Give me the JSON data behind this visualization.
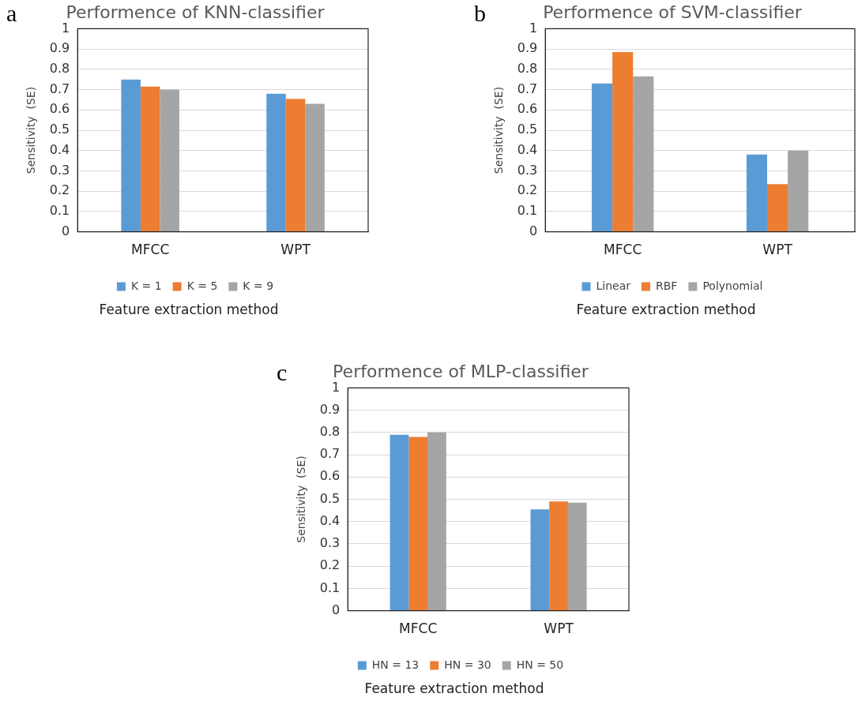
{
  "chart_data": [
    {
      "type": "bar",
      "title": "Performence of KNN-classifier",
      "xlabel": "Feature extraction method",
      "ylabel": "Sensitivity  (SE)",
      "annotations": [
        "a"
      ],
      "categories": [
        "MFCC",
        "WPT"
      ],
      "ylim": [
        0,
        1
      ],
      "yticks": [
        0,
        0.1,
        0.2,
        0.3,
        0.4,
        0.5,
        0.6,
        0.7,
        0.8,
        0.9,
        1
      ],
      "grid": "y",
      "legend": "bottom",
      "series": [
        {
          "name": "K = 1",
          "color": "#5b9bd5",
          "values": [
            0.75,
            0.68
          ]
        },
        {
          "name": "K = 5",
          "color": "#ed7d31",
          "values": [
            0.715,
            0.655
          ]
        },
        {
          "name": "K = 9",
          "color": "#a5a5a5",
          "values": [
            0.7,
            0.63
          ]
        }
      ]
    },
    {
      "type": "bar",
      "title": "Performence of SVM-classifier",
      "xlabel": "Feature extraction method",
      "ylabel": "Sensitivity  (SE)",
      "annotations": [
        "b"
      ],
      "categories": [
        "MFCC",
        "WPT"
      ],
      "ylim": [
        0,
        1
      ],
      "yticks": [
        0,
        0.1,
        0.2,
        0.3,
        0.4,
        0.5,
        0.6,
        0.7,
        0.8,
        0.9,
        1
      ],
      "grid": "y",
      "legend": "bottom",
      "series": [
        {
          "name": "Linear",
          "color": "#5b9bd5",
          "values": [
            0.73,
            0.38
          ]
        },
        {
          "name": "RBF",
          "color": "#ed7d31",
          "values": [
            0.885,
            0.235
          ]
        },
        {
          "name": "Polynomial",
          "color": "#a5a5a5",
          "values": [
            0.765,
            0.4
          ]
        }
      ]
    },
    {
      "type": "bar",
      "title": "Performence of MLP-classifier",
      "xlabel": "Feature extraction method",
      "ylabel": "Sensitivity  (SE)",
      "annotations": [
        "c"
      ],
      "categories": [
        "MFCC",
        "WPT"
      ],
      "ylim": [
        0,
        1
      ],
      "yticks": [
        0,
        0.1,
        0.2,
        0.3,
        0.4,
        0.5,
        0.6,
        0.7,
        0.8,
        0.9,
        1
      ],
      "grid": "y",
      "legend": "bottom",
      "series": [
        {
          "name": "HN = 13",
          "color": "#5b9bd5",
          "values": [
            0.79,
            0.455
          ]
        },
        {
          "name": "HN = 30",
          "color": "#ed7d31",
          "values": [
            0.78,
            0.49
          ]
        },
        {
          "name": "HN = 50",
          "color": "#a5a5a5",
          "values": [
            0.8,
            0.485
          ]
        }
      ]
    }
  ]
}
